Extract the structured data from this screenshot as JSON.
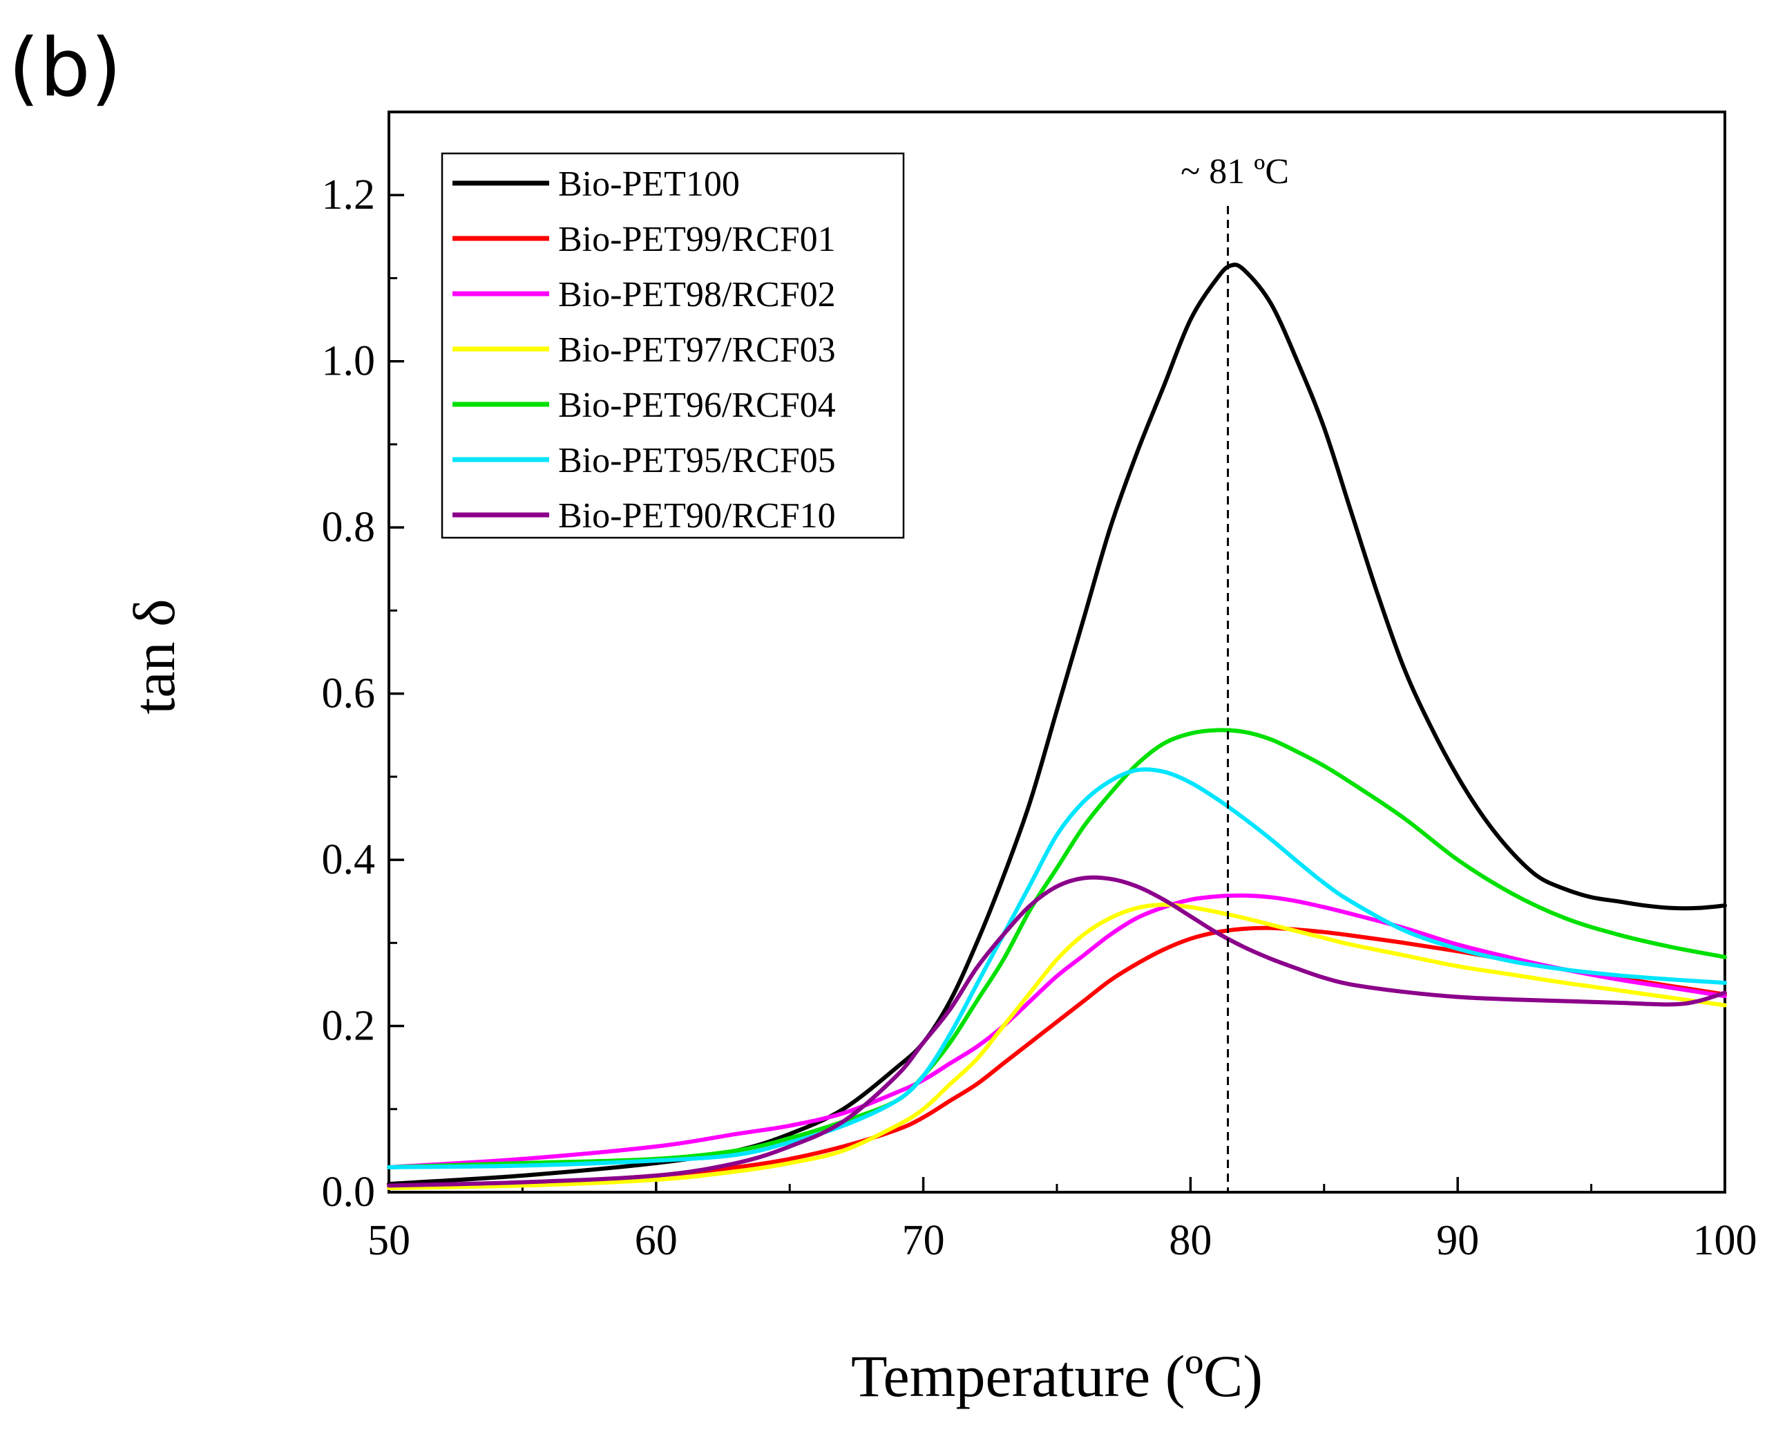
{
  "panel_label": "(b)",
  "chart_data": {
    "type": "line",
    "xlabel": "Temperature (ºC)",
    "ylabel": "tan δ",
    "xlim": [
      50,
      100
    ],
    "ylim": [
      0,
      1.3
    ],
    "xticks": [
      50,
      60,
      70,
      80,
      90,
      100
    ],
    "xtick_labels": [
      "50",
      "60",
      "70",
      "80",
      "90",
      "100"
    ],
    "yticks": [
      0.0,
      0.2,
      0.4,
      0.6,
      0.8,
      1.0,
      1.2
    ],
    "ytick_labels": [
      "0.0",
      "0.2",
      "0.4",
      "0.6",
      "0.8",
      "1.0",
      "1.2"
    ],
    "grid": false,
    "legend_position": "top-left",
    "annotation": {
      "text": "~ 81 ºC",
      "x": 81.4
    },
    "series": [
      {
        "name": "Bio-PET100",
        "color": "#000000",
        "x": [
          50,
          55,
          60,
          63,
          65,
          67,
          69,
          70,
          71,
          72,
          73,
          74,
          75,
          76,
          77,
          78,
          79,
          80,
          81,
          81.5,
          82,
          83,
          84,
          85,
          86,
          87,
          88,
          89,
          90,
          91,
          92,
          93,
          94,
          95,
          96,
          97,
          98,
          99,
          100
        ],
        "y": [
          0.01,
          0.02,
          0.035,
          0.05,
          0.07,
          0.1,
          0.15,
          0.18,
          0.23,
          0.3,
          0.38,
          0.47,
          0.58,
          0.69,
          0.8,
          0.89,
          0.97,
          1.05,
          1.1,
          1.115,
          1.11,
          1.07,
          1.0,
          0.92,
          0.82,
          0.72,
          0.63,
          0.56,
          0.5,
          0.45,
          0.41,
          0.38,
          0.365,
          0.355,
          0.35,
          0.345,
          0.342,
          0.342,
          0.345
        ]
      },
      {
        "name": "Bio-PET99/RCF01",
        "color": "#ff0000",
        "x": [
          50,
          55,
          60,
          63,
          65,
          67,
          69,
          70,
          71,
          72,
          73,
          74,
          75,
          76,
          77,
          78,
          79,
          80,
          81,
          82,
          83,
          84,
          85,
          86,
          88,
          90,
          92,
          94,
          96,
          98,
          100
        ],
        "y": [
          0.005,
          0.01,
          0.02,
          0.03,
          0.04,
          0.055,
          0.075,
          0.09,
          0.11,
          0.13,
          0.155,
          0.18,
          0.205,
          0.23,
          0.255,
          0.275,
          0.292,
          0.305,
          0.313,
          0.317,
          0.318,
          0.316,
          0.313,
          0.309,
          0.3,
          0.29,
          0.279,
          0.268,
          0.258,
          0.248,
          0.238
        ]
      },
      {
        "name": "Bio-PET98/RCF02",
        "color": "#ff00ff",
        "x": [
          50,
          55,
          60,
          63,
          65,
          67,
          69,
          70,
          71,
          72,
          73,
          74,
          75,
          76,
          77,
          78,
          79,
          80,
          81,
          82,
          83,
          84,
          85,
          86,
          88,
          90,
          92,
          94,
          96,
          98,
          100
        ],
        "y": [
          0.03,
          0.04,
          0.055,
          0.07,
          0.08,
          0.095,
          0.12,
          0.135,
          0.155,
          0.175,
          0.2,
          0.23,
          0.26,
          0.285,
          0.31,
          0.33,
          0.343,
          0.352,
          0.356,
          0.357,
          0.355,
          0.35,
          0.343,
          0.335,
          0.318,
          0.298,
          0.282,
          0.268,
          0.256,
          0.246,
          0.236
        ]
      },
      {
        "name": "Bio-PET97/RCF03",
        "color": "#ffff00",
        "x": [
          50,
          55,
          60,
          63,
          65,
          67,
          69,
          70,
          71,
          72,
          73,
          74,
          75,
          76,
          77,
          78,
          79,
          80,
          81,
          82,
          83,
          84,
          85,
          86,
          88,
          90,
          92,
          94,
          96,
          98,
          100
        ],
        "y": [
          0.005,
          0.008,
          0.015,
          0.025,
          0.035,
          0.05,
          0.08,
          0.1,
          0.13,
          0.16,
          0.2,
          0.24,
          0.28,
          0.31,
          0.33,
          0.342,
          0.346,
          0.343,
          0.337,
          0.33,
          0.322,
          0.314,
          0.306,
          0.298,
          0.285,
          0.272,
          0.262,
          0.252,
          0.243,
          0.234,
          0.225
        ]
      },
      {
        "name": "Bio-PET96/RCF04",
        "color": "#00e000",
        "x": [
          50,
          55,
          60,
          63,
          65,
          67,
          69,
          70,
          71,
          72,
          73,
          74,
          75,
          76,
          77,
          78,
          79,
          80,
          81,
          82,
          83,
          84,
          85,
          86,
          88,
          90,
          92,
          94,
          96,
          98,
          100
        ],
        "y": [
          0.03,
          0.035,
          0.04,
          0.05,
          0.065,
          0.085,
          0.11,
          0.14,
          0.18,
          0.23,
          0.28,
          0.34,
          0.39,
          0.44,
          0.48,
          0.515,
          0.54,
          0.552,
          0.556,
          0.554,
          0.545,
          0.53,
          0.513,
          0.493,
          0.45,
          0.4,
          0.36,
          0.33,
          0.31,
          0.295,
          0.283
        ]
      },
      {
        "name": "Bio-PET95/RCF05",
        "color": "#00e5ff",
        "x": [
          50,
          55,
          60,
          63,
          65,
          67,
          69,
          70,
          71,
          72,
          73,
          74,
          75,
          76,
          77,
          78,
          79,
          80,
          81,
          82,
          83,
          84,
          85,
          86,
          88,
          90,
          92,
          94,
          96,
          98,
          100
        ],
        "y": [
          0.03,
          0.032,
          0.038,
          0.045,
          0.06,
          0.08,
          0.11,
          0.14,
          0.19,
          0.25,
          0.31,
          0.37,
          0.43,
          0.47,
          0.495,
          0.508,
          0.506,
          0.493,
          0.473,
          0.45,
          0.425,
          0.398,
          0.372,
          0.35,
          0.315,
          0.293,
          0.278,
          0.268,
          0.261,
          0.256,
          0.252
        ]
      },
      {
        "name": "Bio-PET90/RCF10",
        "color": "#8b008b",
        "x": [
          50,
          55,
          60,
          63,
          65,
          67,
          69,
          70,
          71,
          72,
          73,
          74,
          75,
          76,
          77,
          78,
          79,
          80,
          81,
          82,
          83,
          84,
          85,
          86,
          88,
          90,
          92,
          94,
          96,
          98,
          99,
          100
        ],
        "y": [
          0.008,
          0.012,
          0.02,
          0.035,
          0.055,
          0.085,
          0.14,
          0.18,
          0.22,
          0.27,
          0.31,
          0.345,
          0.368,
          0.378,
          0.377,
          0.368,
          0.352,
          0.332,
          0.312,
          0.295,
          0.281,
          0.269,
          0.258,
          0.25,
          0.241,
          0.235,
          0.232,
          0.23,
          0.228,
          0.226,
          0.23,
          0.24
        ]
      }
    ]
  }
}
